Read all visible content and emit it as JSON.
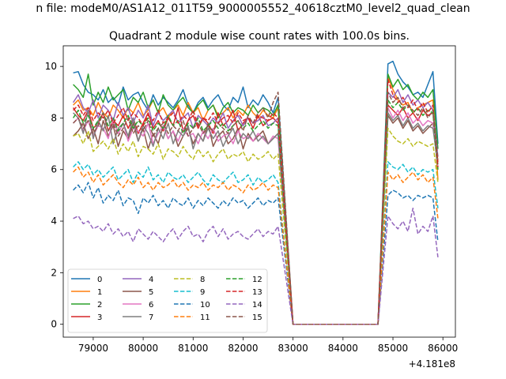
{
  "suptitle": "n file: modeM0/AS1A12_011T59_9000005552_40618cztM0_level2_quad_clean",
  "title": "Quadrant 2 module wise count rates with 100.0s bins.",
  "offset_label": "+4.181e8",
  "chart_data": {
    "type": "line",
    "title": "Quadrant 2 module wise count rates with 100.0s bins.",
    "x_offset": 418100000,
    "xlim": [
      78400,
      86250
    ],
    "ylim": [
      -0.5,
      10.8
    ],
    "x_ticks": [
      79000,
      80000,
      81000,
      82000,
      83000,
      84000,
      85000,
      86000
    ],
    "x_tick_labels": [
      "79000",
      "80000",
      "81000",
      "82000",
      "83000",
      "84000",
      "85000",
      "86000"
    ],
    "y_ticks": [
      0,
      2,
      4,
      6,
      8,
      10
    ],
    "y_tick_labels": [
      "0",
      "2",
      "4",
      "6",
      "8",
      "10"
    ],
    "grid": false,
    "legend_position": "lower-left",
    "segment1": {
      "x_start": 78600,
      "x_end": 82700,
      "step": 100
    },
    "segment2": {
      "x_start": 84900,
      "x_end": 85800,
      "step": 100
    },
    "gap_x": [
      83000,
      83100,
      83200,
      83300,
      83400,
      83500,
      83600,
      83700,
      83800,
      83900,
      84000,
      84100,
      84200,
      84300,
      84400,
      84500,
      84600,
      84700
    ],
    "gap_value": 0,
    "tail_x": 85900,
    "series": [
      {
        "name": "0",
        "color": "#1f77b4",
        "dashed": false,
        "seg1": [
          9.75,
          9.8,
          9.3,
          9.0,
          8.9,
          8.7,
          9.1,
          8.6,
          8.8,
          8.5,
          9.2,
          8.7,
          8.9,
          9.0,
          8.6,
          8.3,
          8.9,
          8.5,
          8.8,
          8.6,
          8.4,
          8.7,
          9.1,
          8.5,
          8.2,
          8.6,
          8.8,
          8.4,
          8.7,
          8.9,
          8.5,
          8.3,
          8.8,
          8.6,
          9.2,
          8.4,
          8.7,
          8.5,
          8.9,
          8.6,
          8.2,
          8.8
        ],
        "seg2": [
          10.1,
          10.2,
          9.7,
          9.4,
          9.2,
          8.9,
          9.0,
          8.8,
          9.3,
          9.8
        ],
        "tail": 7.0
      },
      {
        "name": "1",
        "color": "#ff7f0e",
        "dashed": false,
        "seg1": [
          8.5,
          8.7,
          8.3,
          8.4,
          8.1,
          8.6,
          8.2,
          8.0,
          8.5,
          8.3,
          8.0,
          8.4,
          8.2,
          8.6,
          8.1,
          8.3,
          8.7,
          8.2,
          8.4,
          8.0,
          8.3,
          8.5,
          8.1,
          8.6,
          8.2,
          8.4,
          7.9,
          8.3,
          8.5,
          8.1,
          8.2,
          8.4,
          8.0,
          8.3,
          8.1,
          8.5,
          8.2,
          8.0,
          8.3,
          8.1,
          8.0,
          8.4
        ],
        "seg2": [
          9.6,
          9.1,
          8.7,
          8.5,
          8.6,
          8.2,
          8.4,
          8.5,
          8.6,
          8.7
        ],
        "tail": 5.6
      },
      {
        "name": "2",
        "color": "#2ca02c",
        "dashed": false,
        "seg1": [
          9.3,
          9.1,
          8.8,
          9.7,
          8.5,
          9.0,
          8.6,
          9.2,
          8.7,
          8.9,
          9.1,
          8.3,
          8.8,
          8.6,
          9.0,
          8.4,
          8.7,
          8.2,
          8.9,
          8.5,
          8.3,
          8.6,
          8.8,
          8.4,
          8.2,
          8.5,
          8.7,
          8.3,
          8.5,
          8.0,
          8.4,
          8.6,
          8.2,
          8.4,
          8.3,
          8.1,
          8.5,
          8.2,
          8.4,
          8.3,
          8.1,
          8.5
        ],
        "seg2": [
          9.7,
          9.2,
          9.5,
          9.1,
          9.3,
          8.9,
          8.7,
          9.0,
          8.8,
          9.1
        ],
        "tail": 6.8
      },
      {
        "name": "3",
        "color": "#d62728",
        "dashed": false,
        "seg1": [
          8.4,
          8.1,
          7.9,
          8.3,
          7.6,
          7.8,
          8.2,
          7.5,
          7.9,
          7.7,
          8.1,
          7.6,
          8.0,
          7.4,
          7.8,
          8.2,
          7.6,
          7.9,
          7.5,
          8.0,
          7.7,
          8.4,
          7.5,
          7.9,
          8.1,
          7.6,
          8.0,
          7.8,
          7.4,
          8.2,
          7.7,
          7.9,
          8.3,
          7.5,
          7.8,
          8.0,
          7.6,
          8.1,
          7.7,
          7.9,
          8.0,
          7.8
        ],
        "seg2": [
          8.5,
          8.3,
          8.1,
          8.4,
          8.0,
          8.2,
          7.9,
          8.3,
          8.1,
          8.2
        ],
        "tail": 6.3
      },
      {
        "name": "4",
        "color": "#9467bd",
        "dashed": false,
        "seg1": [
          8.6,
          8.9,
          8.4,
          8.2,
          8.7,
          8.0,
          8.5,
          8.3,
          7.9,
          8.6,
          8.1,
          8.4,
          7.8,
          8.3,
          8.0,
          8.5,
          7.7,
          8.2,
          7.9,
          8.1,
          8.3,
          7.8,
          8.0,
          8.2,
          7.6,
          8.1,
          7.9,
          7.7,
          8.0,
          7.8,
          8.2,
          7.6,
          7.9,
          8.1,
          7.7,
          8.0,
          7.8,
          7.9,
          8.1,
          7.7,
          7.8,
          8.0
        ],
        "seg2": [
          9.0,
          8.8,
          9.1,
          8.6,
          8.9,
          8.5,
          8.7,
          8.4,
          8.6,
          8.3
        ],
        "tail": 6.5
      },
      {
        "name": "5",
        "color": "#8c564b",
        "dashed": false,
        "seg1": [
          7.3,
          7.5,
          7.8,
          7.2,
          7.6,
          7.0,
          7.9,
          7.3,
          7.7,
          6.9,
          7.5,
          7.2,
          7.8,
          7.1,
          7.6,
          6.8,
          7.4,
          7.0,
          7.7,
          7.2,
          7.5,
          6.9,
          7.3,
          7.6,
          7.0,
          7.4,
          7.1,
          7.8,
          6.9,
          7.3,
          7.5,
          7.0,
          7.2,
          7.6,
          6.8,
          7.4,
          7.1,
          7.3,
          7.5,
          7.0,
          7.2,
          7.4
        ],
        "seg2": [
          8.1,
          7.8,
          8.0,
          7.6,
          7.9,
          7.5,
          7.7,
          7.4,
          7.6,
          7.8
        ],
        "tail": 6.0
      },
      {
        "name": "6",
        "color": "#e377c2",
        "dashed": false,
        "seg1": [
          7.8,
          8.0,
          7.5,
          7.9,
          7.3,
          7.7,
          7.6,
          7.2,
          7.9,
          7.4,
          7.8,
          7.1,
          7.6,
          7.5,
          7.3,
          7.8,
          7.0,
          7.4,
          7.7,
          7.2,
          7.5,
          7.1,
          7.6,
          7.3,
          7.4,
          7.0,
          7.5,
          7.2,
          7.6,
          7.1,
          7.3,
          7.4,
          7.0,
          7.5,
          7.2,
          7.3,
          7.1,
          7.4,
          7.2,
          7.0,
          7.3,
          7.2
        ],
        "seg2": [
          8.4,
          8.0,
          8.3,
          7.9,
          8.2,
          7.8,
          8.0,
          7.7,
          7.9,
          7.8
        ],
        "tail": 6.1
      },
      {
        "name": "7",
        "color": "#7f7f7f",
        "dashed": false,
        "seg1": [
          8.2,
          8.0,
          7.4,
          8.3,
          7.2,
          7.9,
          7.5,
          8.1,
          7.0,
          7.6,
          7.8,
          7.3,
          8.0,
          7.1,
          7.7,
          7.4,
          6.9,
          7.6,
          7.2,
          7.8,
          7.0,
          7.5,
          7.3,
          7.7,
          6.8,
          7.4,
          7.1,
          7.6,
          7.2,
          7.5,
          6.9,
          7.3,
          7.6,
          7.0,
          7.4,
          7.2,
          7.5,
          7.1,
          7.3,
          7.0,
          7.2,
          7.4
        ],
        "seg2": [
          8.2,
          7.9,
          8.1,
          7.7,
          8.0,
          7.6,
          7.8,
          7.5,
          7.7,
          7.6
        ],
        "tail": 6.2
      },
      {
        "name": "8",
        "color": "#bcbd22",
        "dashed": true,
        "seg1": [
          7.3,
          7.4,
          7.0,
          7.5,
          6.7,
          6.9,
          7.1,
          6.8,
          7.2,
          6.6,
          7.0,
          6.7,
          7.1,
          6.5,
          6.9,
          6.8,
          6.6,
          7.0,
          6.4,
          6.8,
          6.7,
          6.5,
          6.9,
          6.6,
          6.4,
          6.8,
          6.5,
          6.7,
          6.3,
          6.6,
          6.8,
          6.4,
          6.6,
          6.5,
          6.7,
          6.3,
          6.6,
          6.4,
          6.5,
          6.7,
          6.4,
          6.6
        ],
        "seg2": [
          7.6,
          7.3,
          7.1,
          7.0,
          7.2,
          6.9,
          7.1,
          7.0,
          6.9,
          7.0
        ],
        "tail": 5.5
      },
      {
        "name": "9",
        "color": "#17becf",
        "dashed": true,
        "seg1": [
          6.1,
          6.3,
          6.0,
          6.2,
          5.8,
          6.0,
          5.7,
          5.9,
          6.1,
          5.6,
          5.8,
          6.0,
          5.5,
          5.9,
          5.7,
          6.1,
          5.6,
          5.8,
          5.5,
          5.9,
          5.7,
          5.6,
          5.8,
          5.5,
          5.7,
          5.9,
          5.6,
          5.4,
          5.8,
          5.6,
          5.5,
          5.7,
          5.9,
          5.5,
          5.6,
          5.8,
          5.4,
          5.7,
          5.5,
          5.6,
          5.8,
          5.5
        ],
        "seg2": [
          6.3,
          6.1,
          6.0,
          6.2,
          5.9,
          6.1,
          5.8,
          6.0,
          5.9,
          6.0
        ],
        "tail": 4.5
      },
      {
        "name": "10",
        "color": "#1f77b4",
        "dashed": true,
        "seg1": [
          5.2,
          5.4,
          5.1,
          5.5,
          4.9,
          5.3,
          4.7,
          5.0,
          4.8,
          5.2,
          4.6,
          4.9,
          4.8,
          4.3,
          4.9,
          4.7,
          5.0,
          4.6,
          4.8,
          4.5,
          4.9,
          4.7,
          4.6,
          4.9,
          4.5,
          4.8,
          4.6,
          4.9,
          4.7,
          4.5,
          4.8,
          4.6,
          4.9,
          4.7,
          4.8,
          4.5,
          4.7,
          4.9,
          4.6,
          4.8,
          4.7,
          4.9
        ],
        "seg2": [
          5.0,
          5.2,
          5.1,
          4.9,
          5.0,
          4.8,
          5.0,
          4.9,
          5.0,
          4.9
        ],
        "tail": 3.2
      },
      {
        "name": "11",
        "color": "#ff7f0e",
        "dashed": true,
        "seg1": [
          5.9,
          6.1,
          5.7,
          5.9,
          5.5,
          5.8,
          5.4,
          5.6,
          5.8,
          5.5,
          5.3,
          5.6,
          5.4,
          5.7,
          5.3,
          5.5,
          5.2,
          5.5,
          5.3,
          5.4,
          5.6,
          5.3,
          5.5,
          5.2,
          5.4,
          5.3,
          5.5,
          5.2,
          5.4,
          5.3,
          5.5,
          5.2,
          5.4,
          5.3,
          5.1,
          5.4,
          5.2,
          5.3,
          5.5,
          5.2,
          5.4,
          5.3
        ],
        "seg2": [
          5.9,
          5.6,
          5.8,
          5.5,
          5.7,
          5.9,
          5.6,
          5.8,
          5.5,
          5.7
        ],
        "tail": 4.1
      },
      {
        "name": "12",
        "color": "#2ca02c",
        "dashed": true,
        "seg1": [
          8.0,
          8.3,
          7.8,
          8.1,
          7.6,
          7.9,
          8.2,
          7.7,
          8.0,
          7.5,
          7.8,
          8.1,
          7.6,
          7.9,
          7.7,
          8.0,
          7.5,
          7.8,
          7.6,
          8.1,
          7.7,
          7.9,
          7.4,
          7.8,
          7.6,
          8.0,
          7.5,
          7.7,
          7.9,
          7.6,
          7.8,
          7.5,
          7.7,
          7.9,
          7.6,
          7.8,
          7.5,
          7.7,
          7.9,
          7.6,
          7.8,
          7.7
        ],
        "seg2": [
          8.7,
          8.4,
          8.6,
          8.3,
          8.5,
          8.2,
          8.4,
          8.1,
          8.3,
          8.2
        ],
        "tail": 6.0
      },
      {
        "name": "13",
        "color": "#d62728",
        "dashed": true,
        "seg1": [
          8.3,
          8.5,
          8.1,
          8.4,
          7.9,
          8.2,
          8.0,
          8.3,
          7.8,
          8.1,
          8.4,
          7.9,
          8.2,
          8.0,
          7.7,
          8.1,
          7.9,
          8.3,
          7.8,
          8.0,
          8.2,
          7.8,
          8.1,
          7.9,
          8.3,
          7.7,
          8.0,
          7.9,
          8.2,
          7.8,
          8.0,
          8.1,
          7.8,
          8.2,
          7.9,
          8.0,
          7.8,
          8.1,
          8.0,
          7.9,
          8.2,
          8.0
        ],
        "seg2": [
          9.5,
          8.9,
          8.6,
          8.8,
          8.4,
          8.7,
          8.3,
          8.6,
          8.2,
          8.5
        ],
        "tail": 6.1
      },
      {
        "name": "14",
        "color": "#9467bd",
        "dashed": true,
        "seg1": [
          4.1,
          4.2,
          3.9,
          4.0,
          3.7,
          3.8,
          3.6,
          3.9,
          3.5,
          3.7,
          3.4,
          3.6,
          3.2,
          3.7,
          3.5,
          3.3,
          3.6,
          3.4,
          3.2,
          3.5,
          3.7,
          3.3,
          3.6,
          3.8,
          3.4,
          3.5,
          3.2,
          3.6,
          3.8,
          3.4,
          3.7,
          3.3,
          3.5,
          3.6,
          3.4,
          3.3,
          3.5,
          3.7,
          3.4,
          3.6,
          3.5,
          3.8
        ],
        "seg2": [
          4.2,
          3.9,
          3.7,
          4.0,
          3.6,
          4.5,
          3.5,
          3.8,
          3.6,
          4.2
        ],
        "tail": 2.6
      },
      {
        "name": "15",
        "color": "#8c564b",
        "dashed": true,
        "seg1": [
          7.8,
          8.0,
          7.6,
          7.9,
          7.4,
          7.7,
          8.2,
          7.5,
          7.8,
          7.3,
          7.6,
          8.0,
          7.4,
          7.7,
          7.5,
          7.9,
          7.3,
          7.6,
          7.8,
          7.4,
          7.7,
          7.5,
          7.9,
          7.3,
          7.6,
          7.8,
          7.4,
          7.7,
          7.5,
          7.8,
          7.6,
          7.4,
          7.7,
          7.9,
          7.5,
          8.1,
          7.8,
          8.2,
          8.4,
          8.0,
          8.6,
          9.0
        ],
        "seg2": [
          9.0,
          8.6,
          8.8,
          8.4,
          8.5,
          8.3,
          8.1,
          8.4,
          8.0,
          8.3
        ],
        "tail": 6.4
      }
    ]
  }
}
